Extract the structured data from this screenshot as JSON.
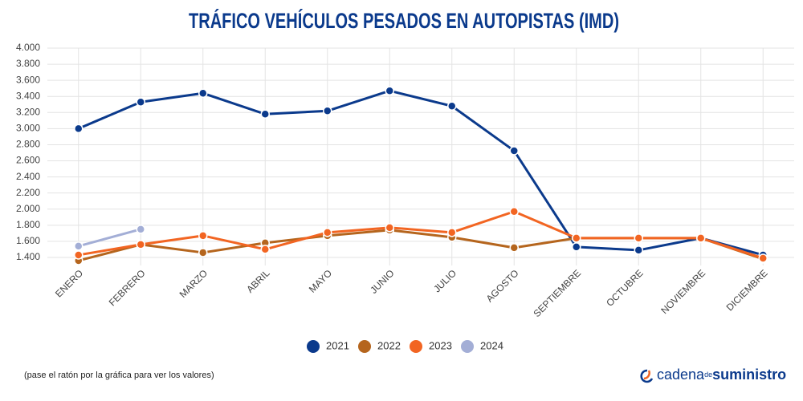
{
  "chart_data": {
    "type": "line",
    "title": "TRÁFICO VEHÍCULOS PESADOS EN AUTOPISTAS (IMD)",
    "categories": [
      "ENERO",
      "FEBRERO",
      "MARZO",
      "ABRIL",
      "MAYO",
      "JUNIO",
      "JULIO",
      "AGOSTO",
      "SEPTIEMBRE",
      "OCTUBRE",
      "NOVIEMBRE",
      "DICIEMBRE"
    ],
    "series": [
      {
        "name": "2021",
        "color": "#0b3a8c",
        "values": [
          3000,
          3330,
          3440,
          3180,
          3220,
          3470,
          3280,
          2725,
          1530,
          1490,
          1640,
          1430
        ]
      },
      {
        "name": "2022",
        "color": "#b5651d",
        "values": [
          1360,
          1560,
          1460,
          1580,
          1670,
          1740,
          1650,
          1520,
          1640,
          1640,
          1640,
          1380
        ]
      },
      {
        "name": "2023",
        "color": "#f26522",
        "values": [
          1430,
          1560,
          1670,
          1500,
          1710,
          1770,
          1710,
          1970,
          1640,
          1640,
          1640,
          1390
        ]
      },
      {
        "name": "2024",
        "color": "#a3aed6",
        "values": [
          1540,
          1750,
          null,
          null,
          null,
          null,
          null,
          null,
          null,
          null,
          null,
          null
        ]
      }
    ],
    "ylim": [
      1300,
      4000
    ],
    "yticks": [
      {
        "value": 1400,
        "label": "1.400"
      },
      {
        "value": 1600,
        "label": "1.600"
      },
      {
        "value": 1800,
        "label": "1.800"
      },
      {
        "value": 2000,
        "label": "2.000"
      },
      {
        "value": 2200,
        "label": "2.200"
      },
      {
        "value": 2400,
        "label": "2.400"
      },
      {
        "value": 2600,
        "label": "2.600"
      },
      {
        "value": 2800,
        "label": "2.800"
      },
      {
        "value": 3000,
        "label": "3.000"
      },
      {
        "value": 3200,
        "label": "3.200"
      },
      {
        "value": 3400,
        "label": "3.400"
      },
      {
        "value": 3600,
        "label": "3.600"
      },
      {
        "value": 3800,
        "label": "3.800"
      },
      {
        "value": 4000,
        "label": "4.000"
      }
    ],
    "grid": true,
    "legend": "bottom",
    "note": "(pase el ratón por la gráfica para ver los valores)",
    "logo": [
      "cadena",
      "de",
      "suministro"
    ]
  }
}
